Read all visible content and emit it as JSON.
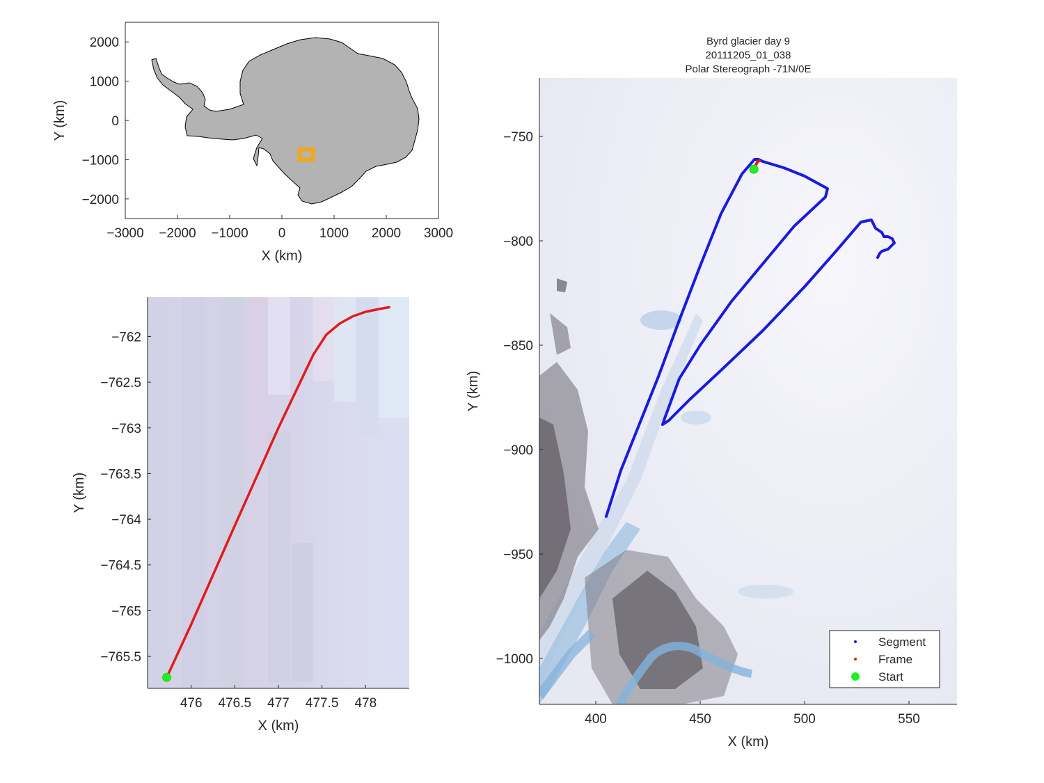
{
  "chart_data": [
    {
      "id": "overview",
      "type": "map",
      "xlabel": "X (km)",
      "ylabel": "Y (km)",
      "xlim": [
        -3000,
        3000
      ],
      "ylim": [
        -2500,
        2500
      ],
      "xticks": [
        -3000,
        -2000,
        -1000,
        0,
        1000,
        2000,
        3000
      ],
      "yticks": [
        -2000,
        -1000,
        0,
        1000,
        2000
      ],
      "xtick_labels": [
        "−3000",
        "−2000",
        "−1000",
        "0",
        "1000",
        "2000",
        "3000"
      ],
      "ytick_labels": [
        "−2000",
        "−1000",
        "0",
        "1000",
        "2000"
      ],
      "land_color": "#b3b3b3",
      "marker_color": "#f0a820",
      "marker_center": [
        470,
        -870
      ],
      "marker_halfwidth": 130
    },
    {
      "id": "frame-zoom",
      "type": "line",
      "xlabel": "X (km)",
      "ylabel": "Y (km)",
      "xlim": [
        475.5,
        478.5
      ],
      "ylim": [
        -765.85,
        -761.57
      ],
      "xticks": [
        476,
        476.5,
        477,
        477.5,
        478
      ],
      "yticks": [
        -762,
        -762.5,
        -763,
        -763.5,
        -764,
        -764.5,
        -765,
        -765.5
      ],
      "xtick_labels": [
        "476",
        "476.5",
        "477",
        "477.5",
        "478"
      ],
      "ytick_labels": [
        "−762",
        "−762.5",
        "−763",
        "−763.5",
        "−764",
        "−764.5",
        "−765",
        "−765.5"
      ],
      "series": [
        {
          "kind": "frame",
          "color": "#e01b1b",
          "x": [
            475.72,
            476.0,
            476.5,
            477.0,
            477.4,
            477.55,
            477.7,
            477.85,
            478.0,
            478.15,
            478.27
          ],
          "y": [
            -765.73,
            -765.15,
            -764.07,
            -763.0,
            -762.2,
            -761.98,
            -761.86,
            -761.78,
            -761.73,
            -761.7,
            -761.68
          ]
        }
      ],
      "start": {
        "x": 475.72,
        "y": -765.73,
        "color": "#22ee22"
      }
    },
    {
      "id": "segment-map",
      "type": "line",
      "title_lines": [
        "Byrd glacier day 9",
        "20111205_01_038",
        "Polar Stereograph -71N/0E"
      ],
      "xlabel": "X (km)",
      "ylabel": "Y (km)",
      "xlim": [
        373,
        573
      ],
      "ylim": [
        -1022,
        -722
      ],
      "xticks": [
        400,
        450,
        500,
        550
      ],
      "yticks": [
        -750,
        -800,
        -850,
        -900,
        -950,
        -1000
      ],
      "xtick_labels": [
        "400",
        "450",
        "500",
        "550"
      ],
      "ytick_labels": [
        "−750",
        "−800",
        "−850",
        "−900",
        "−950",
        "−1000"
      ],
      "series": [
        {
          "name": "Segment",
          "color": "#1a1adf",
          "x": [
            405,
            412,
            420,
            430,
            440,
            450,
            460,
            470,
            476,
            478,
            480,
            490,
            500,
            511,
            510,
            495,
            480,
            465,
            450,
            440,
            433,
            432,
            435,
            445,
            460,
            480,
            500,
            515,
            527,
            532,
            534,
            537,
            538,
            540,
            542,
            543,
            540,
            537,
            536,
            535
          ],
          "y": [
            -932,
            -910,
            -890,
            -865,
            -838,
            -812,
            -787,
            -768,
            -761,
            -761,
            -762,
            -765,
            -769,
            -775,
            -779,
            -793,
            -811,
            -829,
            -850,
            -866,
            -885,
            -888,
            -886,
            -876,
            -862,
            -843,
            -822,
            -805,
            -791,
            -790,
            -794,
            -796,
            -798,
            -798,
            -799,
            -801,
            -804,
            -805,
            -806,
            -808
          ]
        },
        {
          "name": "Frame",
          "color": "#e01b1b",
          "x": [
            475.72,
            476.5,
            477.4,
            478.27
          ],
          "y": [
            -765.73,
            -764.07,
            -762.2,
            -761.68
          ]
        }
      ],
      "start": {
        "name": "Start",
        "x": 475.72,
        "y": -765.73,
        "color": "#22ee22"
      },
      "legend": {
        "position": "bottom-right",
        "entries": [
          "Segment",
          "Frame",
          "Start"
        ]
      }
    }
  ]
}
